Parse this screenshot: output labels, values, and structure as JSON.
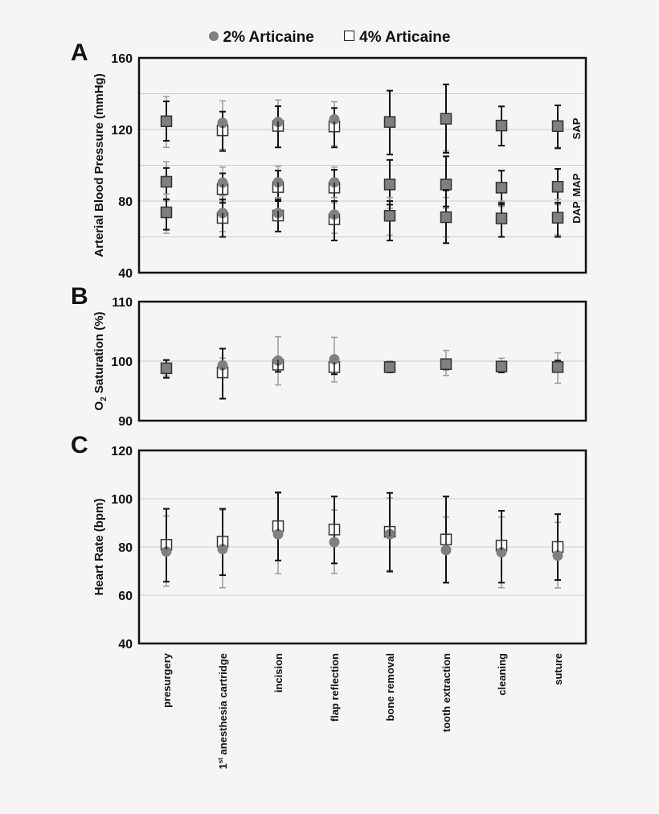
{
  "legend": {
    "series1": "2% Articaine",
    "series2": "4% Articaine"
  },
  "categories": [
    "presurgery",
    "1st anesthesia cartridge",
    "incision",
    "flap reflection",
    "bone removal",
    "tooth extraction",
    "cleaning",
    "suture"
  ],
  "colors": {
    "series1": "#808080",
    "series2": "#ffffff",
    "err1": "#9a9a9a",
    "err2": "#111111",
    "grid": "#cccccc",
    "frame": "#111111"
  },
  "chart_data": [
    {
      "panel": "A",
      "type": "scatter",
      "title": "",
      "ylabel": "Arterial Blood Pressure (mmHg)",
      "ylim": [
        40,
        160
      ],
      "yticks": [
        40,
        80,
        120,
        160
      ],
      "gridlines": [
        60,
        80,
        100,
        120,
        140
      ],
      "right_labels": [
        "SAP",
        "MAP",
        "DAP"
      ],
      "categories": [
        "presurgery",
        "1st anesthesia cartridge",
        "incision",
        "flap reflection",
        "bone removal",
        "tooth extraction",
        "cleaning",
        "suture"
      ],
      "series": [
        {
          "name": "2% Articaine SAP",
          "values": [
            124.6,
            123.7,
            124.2,
            125.7,
            124.2,
            126.0,
            122.2,
            121.9
          ],
          "err_low": [
            110,
            109,
            110,
            111,
            106,
            108,
            111,
            110
          ],
          "err_high": [
            138.4,
            136.0,
            136.5,
            135.5,
            141.7,
            145.2,
            132.9,
            133.5
          ]
        },
        {
          "name": "4% Articaine SAP",
          "values": [
            124.6,
            119.5,
            122.0,
            121.7,
            124.2,
            126.0,
            122.2,
            121.9
          ],
          "err_low": [
            113.7,
            108,
            110,
            110,
            106,
            107,
            111,
            109.5
          ],
          "err_high": [
            135.7,
            130,
            133,
            132,
            141.7,
            145.2,
            132.9,
            133.5
          ]
        },
        {
          "name": "2% Articaine MAP",
          "values": [
            90.8,
            90.3,
            90.5,
            90.5,
            89.3,
            89.3,
            87.5,
            88.0
          ],
          "err_low": [
            80,
            80,
            80,
            79,
            76,
            76,
            77,
            78
          ],
          "err_high": [
            102,
            99,
            99.5,
            99,
            103,
            105,
            97,
            98
          ]
        },
        {
          "name": "4% Articaine MAP",
          "values": [
            90.8,
            86.7,
            87.8,
            87.5,
            89.3,
            89.3,
            87.5,
            88.0
          ],
          "err_low": [
            81,
            79,
            80,
            80,
            78,
            77,
            78,
            79
          ],
          "err_high": [
            98.5,
            95.5,
            97,
            97.5,
            103,
            105,
            97,
            98
          ]
        },
        {
          "name": "2% Articaine DAP",
          "values": [
            73.7,
            73.3,
            73.3,
            72.5,
            71.8,
            71.0,
            70.3,
            70.7
          ],
          "err_low": [
            62,
            63,
            63,
            62,
            61,
            60,
            60,
            61
          ],
          "err_high": [
            84,
            83,
            82,
            82,
            82,
            82,
            80,
            81
          ]
        },
        {
          "name": "4% Articaine DAP",
          "values": [
            73.7,
            70.6,
            71.9,
            69.8,
            71.8,
            71.0,
            70.3,
            70.7
          ],
          "err_low": [
            64,
            60,
            63,
            58,
            58,
            56.5,
            60,
            60
          ],
          "err_high": [
            81,
            81,
            81,
            80,
            80,
            86,
            79,
            79
          ]
        }
      ]
    },
    {
      "panel": "B",
      "type": "scatter",
      "ylabel": "O2 Saturation (%)",
      "ylim": [
        90,
        110
      ],
      "yticks": [
        90,
        100,
        110
      ],
      "gridlines": [
        100
      ],
      "categories": [
        "presurgery",
        "1st anesthesia cartridge",
        "incision",
        "flap reflection",
        "bone removal",
        "tooth extraction",
        "cleaning",
        "suture"
      ],
      "series": [
        {
          "name": "2% Articaine",
          "values": [
            98.8,
            99.3,
            100.1,
            100.3,
            99.0,
            99.5,
            99.1,
            99.0
          ],
          "err_low": [
            97.5,
            97.8,
            96.0,
            96.5,
            98.3,
            97.6,
            98.2,
            96.3
          ],
          "err_high": [
            100.1,
            100.5,
            104.1,
            104.0,
            99.8,
            101.8,
            100.5,
            101.4
          ]
        },
        {
          "name": "4% Articaine",
          "values": [
            98.8,
            98.1,
            99.4,
            99.0,
            99.0,
            99.5,
            99.1,
            99.0
          ],
          "err_low": [
            97.2,
            93.7,
            98.2,
            97.8,
            98.1,
            98.6,
            98.1,
            98.3
          ],
          "err_high": [
            100.2,
            102.1,
            100.2,
            100.0,
            99.9,
            100.2,
            99.9,
            100.1
          ]
        }
      ]
    },
    {
      "panel": "C",
      "type": "scatter",
      "ylabel": "Heart Rate (bpm)",
      "ylim": [
        40,
        120
      ],
      "yticks": [
        40,
        60,
        80,
        100,
        120
      ],
      "gridlines": [
        60,
        80,
        100
      ],
      "categories": [
        "presurgery",
        "1st anesthesia cartridge",
        "incision",
        "flap reflection",
        "bone removal",
        "tooth extraction",
        "cleaning",
        "suture"
      ],
      "series": [
        {
          "name": "2% Articaine",
          "values": [
            78.1,
            79.1,
            85.3,
            82.0,
            85.3,
            78.7,
            77.8,
            76.4
          ],
          "err_low": [
            63.7,
            63.1,
            68.9,
            69.0,
            70.3,
            65.2,
            63.1,
            63.0
          ],
          "err_high": [
            92.8,
            95.3,
            102.3,
            95.3,
            100.3,
            92.4,
            92.4,
            90.2
          ]
        },
        {
          "name": "4% Articaine",
          "values": [
            80.9,
            82.2,
            88.6,
            87.2,
            86.3,
            83.1,
            80.6,
            80.0
          ],
          "err_low": [
            65.6,
            68.3,
            74.4,
            73.2,
            69.8,
            65.2,
            65.2,
            66.3
          ],
          "err_high": [
            95.8,
            95.8,
            102.6,
            100.9,
            102.4,
            100.9,
            95.0,
            93.6
          ]
        }
      ]
    }
  ]
}
